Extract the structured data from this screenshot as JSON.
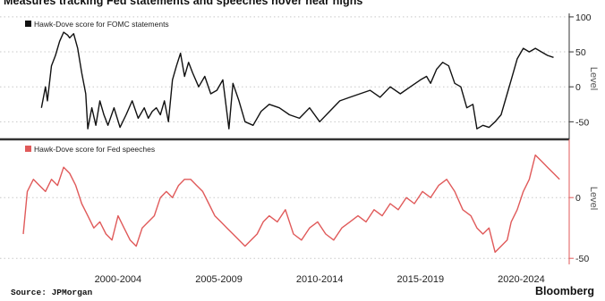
{
  "title": "Measures tracking Fed statements and speeches hover near highs",
  "source": "Source: JPMorgan",
  "brand": "Bloomberg",
  "colors": {
    "statements": "#111111",
    "speeches": "#e05a5a",
    "divider": "#333333",
    "grid": "#c8c8c8"
  },
  "chart_data": [
    {
      "type": "line",
      "legend": "Hawk-Dove score for FOMC statements",
      "ylabel": "Level",
      "ylim": [
        -70,
        105
      ],
      "yticks": [
        100,
        50,
        0,
        -50
      ],
      "grid": "horizontal dotted",
      "legend_position": "top-left",
      "series": [
        {
          "name": "Hawk-Dove score for FOMC statements",
          "x": [
            1998.7,
            1998.9,
            1999.0,
            1999.2,
            1999.4,
            1999.6,
            1999.8,
            2000.0,
            2000.1,
            2000.3,
            2000.5,
            2000.7,
            2000.9,
            2001.0,
            2001.2,
            2001.4,
            2001.6,
            2001.8,
            2002.0,
            2002.3,
            2002.6,
            2002.9,
            2003.2,
            2003.5,
            2003.8,
            2004.0,
            2004.2,
            2004.4,
            2004.6,
            2004.8,
            2005.0,
            2005.2,
            2005.4,
            2005.6,
            2005.8,
            2006.0,
            2006.2,
            2006.5,
            2006.8,
            2007.1,
            2007.4,
            2007.7,
            2008.0,
            2008.2,
            2008.5,
            2008.8,
            2009.2,
            2009.6,
            2010.0,
            2010.5,
            2011.0,
            2011.5,
            2012.0,
            2012.5,
            2013.0,
            2013.5,
            2014.0,
            2014.5,
            2015.0,
            2015.5,
            2016.0,
            2016.5,
            2017.0,
            2017.5,
            2017.8,
            2018.0,
            2018.3,
            2018.6,
            2018.9,
            2019.2,
            2019.5,
            2019.8,
            2020.1,
            2020.3,
            2020.6,
            2020.9,
            2021.2,
            2021.5,
            2021.8,
            2022.0,
            2022.3,
            2022.6,
            2022.9,
            2023.2,
            2023.5,
            2023.8,
            2024.1
          ],
          "values": [
            -30,
            0,
            -20,
            30,
            45,
            65,
            78,
            74,
            70,
            76,
            55,
            20,
            -10,
            -60,
            -30,
            -55,
            -20,
            -40,
            -55,
            -30,
            -58,
            -40,
            -20,
            -45,
            -30,
            -45,
            -35,
            -30,
            -40,
            -20,
            -50,
            10,
            30,
            48,
            15,
            35,
            20,
            0,
            15,
            -10,
            -5,
            10,
            -60,
            5,
            -20,
            -50,
            -55,
            -35,
            -25,
            -30,
            -40,
            -45,
            -30,
            -50,
            -35,
            -20,
            -15,
            -10,
            -5,
            -15,
            0,
            -10,
            0,
            10,
            15,
            5,
            25,
            35,
            30,
            5,
            0,
            -30,
            -25,
            -60,
            -55,
            -58,
            -50,
            -40,
            -10,
            10,
            40,
            55,
            50,
            55,
            50,
            45,
            42
          ]
        }
      ]
    },
    {
      "type": "line",
      "legend": "Hawk-Dove score for Fed speeches",
      "ylabel": "Level",
      "ylim": [
        -55,
        45
      ],
      "yticks": [
        0,
        -50
      ],
      "grid": "horizontal dotted",
      "legend_position": "top-left",
      "series": [
        {
          "name": "Hawk-Dove score for Fed speeches",
          "x": [
            1997.8,
            1998.0,
            1998.3,
            1998.6,
            1998.9,
            1999.2,
            1999.5,
            1999.8,
            2000.1,
            2000.4,
            2000.7,
            2001.0,
            2001.3,
            2001.6,
            2001.9,
            2002.2,
            2002.5,
            2002.8,
            2003.1,
            2003.4,
            2003.7,
            2004.0,
            2004.3,
            2004.6,
            2004.9,
            2005.2,
            2005.5,
            2005.8,
            2006.1,
            2006.4,
            2006.7,
            2007.0,
            2007.3,
            2007.6,
            2007.9,
            2008.2,
            2008.5,
            2008.8,
            2009.1,
            2009.4,
            2009.7,
            2010.0,
            2010.4,
            2010.8,
            2011.2,
            2011.6,
            2012.0,
            2012.4,
            2012.8,
            2013.2,
            2013.6,
            2014.0,
            2014.4,
            2014.8,
            2015.2,
            2015.6,
            2016.0,
            2016.4,
            2016.8,
            2017.2,
            2017.6,
            2018.0,
            2018.4,
            2018.8,
            2019.2,
            2019.6,
            2020.0,
            2020.3,
            2020.6,
            2020.9,
            2021.2,
            2021.5,
            2021.8,
            2022.0,
            2022.3,
            2022.6,
            2022.9,
            2023.2,
            2023.5,
            2023.8,
            2024.1,
            2024.4
          ],
          "values": [
            -30,
            5,
            15,
            10,
            5,
            15,
            10,
            25,
            20,
            10,
            -5,
            -15,
            -25,
            -20,
            -30,
            -35,
            -15,
            -25,
            -35,
            -40,
            -25,
            -20,
            -15,
            0,
            5,
            0,
            10,
            15,
            15,
            10,
            5,
            -5,
            -15,
            -20,
            -25,
            -30,
            -35,
            -40,
            -35,
            -30,
            -20,
            -15,
            -20,
            -10,
            -30,
            -35,
            -25,
            -20,
            -30,
            -35,
            -25,
            -20,
            -15,
            -20,
            -10,
            -15,
            -5,
            -10,
            0,
            -5,
            5,
            0,
            10,
            15,
            5,
            -10,
            -15,
            -25,
            -30,
            -25,
            -45,
            -40,
            -35,
            -20,
            -10,
            5,
            15,
            35,
            30,
            25,
            20,
            15
          ]
        }
      ]
    }
  ],
  "x_axis": {
    "labels": [
      "2000-2004",
      "2005-2009",
      "2010-2014",
      "2015-2019",
      "2020-2024"
    ],
    "centers": [
      2002.5,
      2007.5,
      2012.5,
      2017.5,
      2022.5
    ],
    "range": [
      1997.8,
      2024.7
    ]
  }
}
